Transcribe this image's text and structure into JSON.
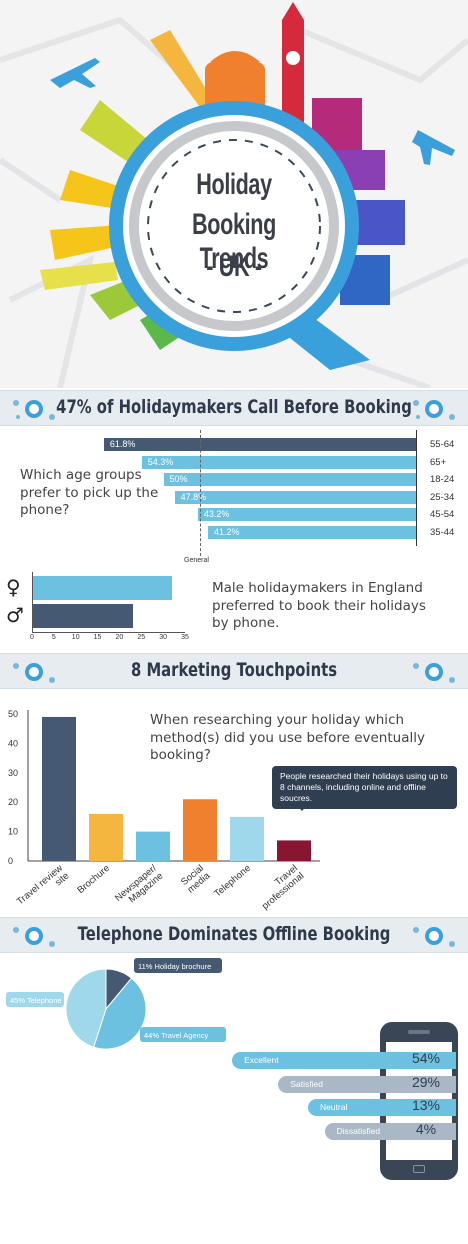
{
  "hero": {
    "title_line1": "Holiday",
    "title_line2": "Booking Trends",
    "title_line3": "- UK -"
  },
  "section1": {
    "title": "47% of Holidaymakers Call Before Booking",
    "question": "Which age groups prefer to pick up the phone?",
    "general_label": "General",
    "gender_text": "Male holidaymakers in England preferred to book their holidays by phone."
  },
  "section2": {
    "title": "8 Marketing Touchpoints",
    "question": "When researching your holiday which method(s) did you use before eventually booking?",
    "callout": "People researched their holidays using up to 8 channels, including online and offline soucres."
  },
  "section3": {
    "title": "Telephone Dominates Offline Booking"
  },
  "colors": {
    "light_blue": "#6cc0e0",
    "dark_navy": "#455a72",
    "yellow": "#f5b640",
    "orange": "#f07f2e",
    "pale_blue": "#9fd8ea",
    "maroon": "#8a1530",
    "grey_blue": "#a9b8c4"
  },
  "chart_data": [
    {
      "type": "bar",
      "orientation": "horizontal",
      "categories": [
        "55-64",
        "65+",
        "18-24",
        "25-34",
        "45-54",
        "35-44"
      ],
      "values": [
        61.8,
        54.3,
        50,
        47.8,
        43.2,
        41.2
      ],
      "value_labels": [
        "61.8%",
        "54.3%",
        "50%",
        "47.8%",
        "43.2%",
        "41.2%"
      ],
      "reference_value": 47,
      "reference_label": "General"
    },
    {
      "type": "bar",
      "orientation": "horizontal",
      "categories": [
        "Female",
        "Male"
      ],
      "category_symbols": [
        "♀",
        "♂"
      ],
      "values": [
        32,
        23
      ],
      "xlim": [
        0,
        35
      ],
      "xticks": [
        "0",
        "5",
        "10",
        "15",
        "20",
        "25",
        "30",
        "35"
      ]
    },
    {
      "type": "bar",
      "categories": [
        "Travel review site",
        "Brochure",
        "Newspaper/ Magazine",
        "Social media",
        "Telephone",
        "Travel professional"
      ],
      "values": [
        49,
        16,
        10,
        21,
        15,
        7
      ],
      "ylim": [
        0,
        50
      ],
      "yticks": [
        "0",
        "10",
        "20",
        "30",
        "40",
        "50"
      ]
    },
    {
      "type": "pie",
      "labels": [
        "11% Holiday brochure",
        "44% Travel Agency",
        "45% Telephone"
      ],
      "values": [
        11,
        44,
        45
      ]
    },
    {
      "type": "bar",
      "orientation": "horizontal",
      "categories": [
        "Excellent",
        "Satisfied",
        "Neutral",
        "Dissatisfied"
      ],
      "values": [
        54,
        29,
        13,
        4
      ],
      "value_labels": [
        "54%",
        "29%",
        "13%",
        "4%"
      ]
    }
  ]
}
